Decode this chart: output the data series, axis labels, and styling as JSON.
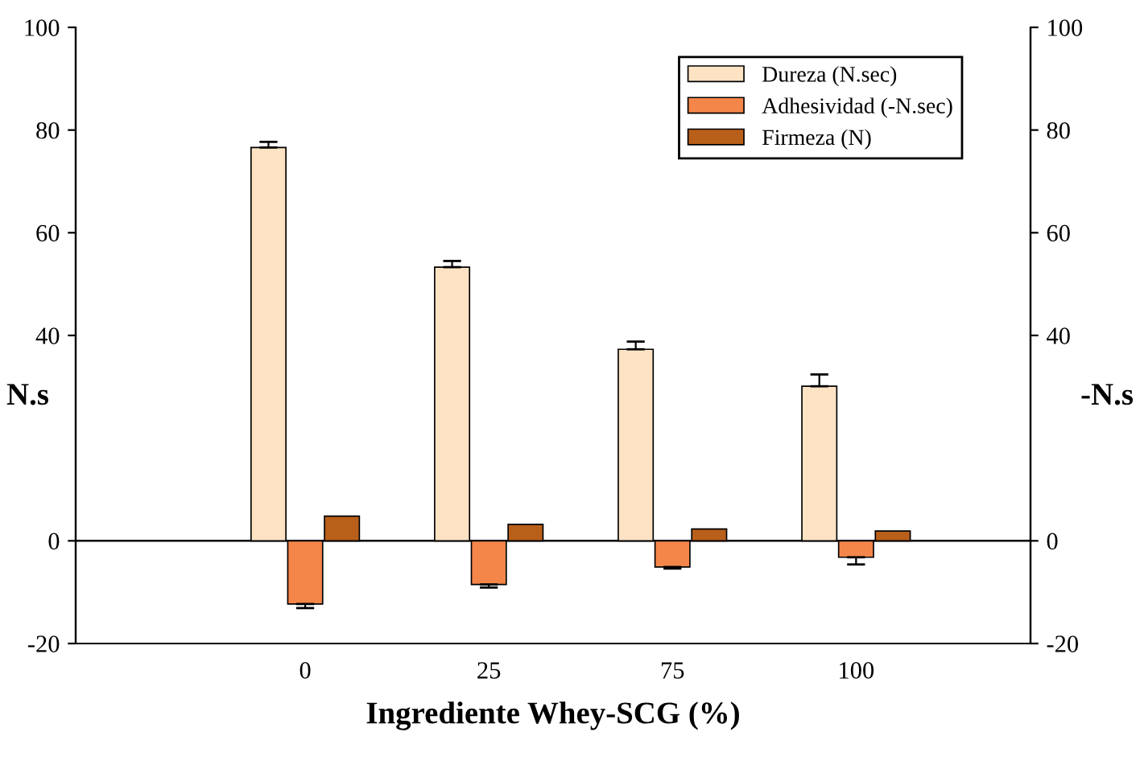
{
  "chart_data": {
    "type": "bar",
    "xlabel": "Ingrediente Whey-SCG (%)",
    "ylabel": "N.s",
    "y2label": "-N.s",
    "categories": [
      "0",
      "25",
      "75",
      "100"
    ],
    "series": [
      {
        "name": "Dureza (N.sec)",
        "color": "#fde3c4",
        "values": [
          76.6,
          53.3,
          37.3,
          30.1
        ],
        "errors": [
          [
            76.6,
            77.7
          ],
          [
            53.3,
            54.5
          ],
          [
            37.3,
            38.8
          ],
          [
            30.1,
            32.4
          ]
        ]
      },
      {
        "name": "Adhesividad (-N.sec)",
        "color": "#f4864a",
        "values": [
          -12.3,
          -8.5,
          -5.1,
          -3.2
        ],
        "errors": [
          [
            -13.1,
            -12.3
          ],
          [
            -9.1,
            -8.5
          ],
          [
            -5.4,
            -5.1
          ],
          [
            -4.6,
            -3.2
          ]
        ]
      },
      {
        "name": "Firmeza (N)",
        "color": "#b85f1a",
        "values": [
          4.8,
          3.2,
          2.3,
          1.9
        ]
      }
    ],
    "ylim": [
      -20,
      100
    ],
    "yticks": [
      -20,
      0,
      40,
      60,
      80,
      100
    ],
    "y2lim": [
      -20,
      100
    ],
    "y2ticks": [
      -20,
      0,
      40,
      60,
      80,
      100
    ],
    "ref_lines": [
      {
        "axis": "y",
        "value": 0,
        "color": "#000000"
      }
    ],
    "legend": "top right",
    "grid": false
  }
}
